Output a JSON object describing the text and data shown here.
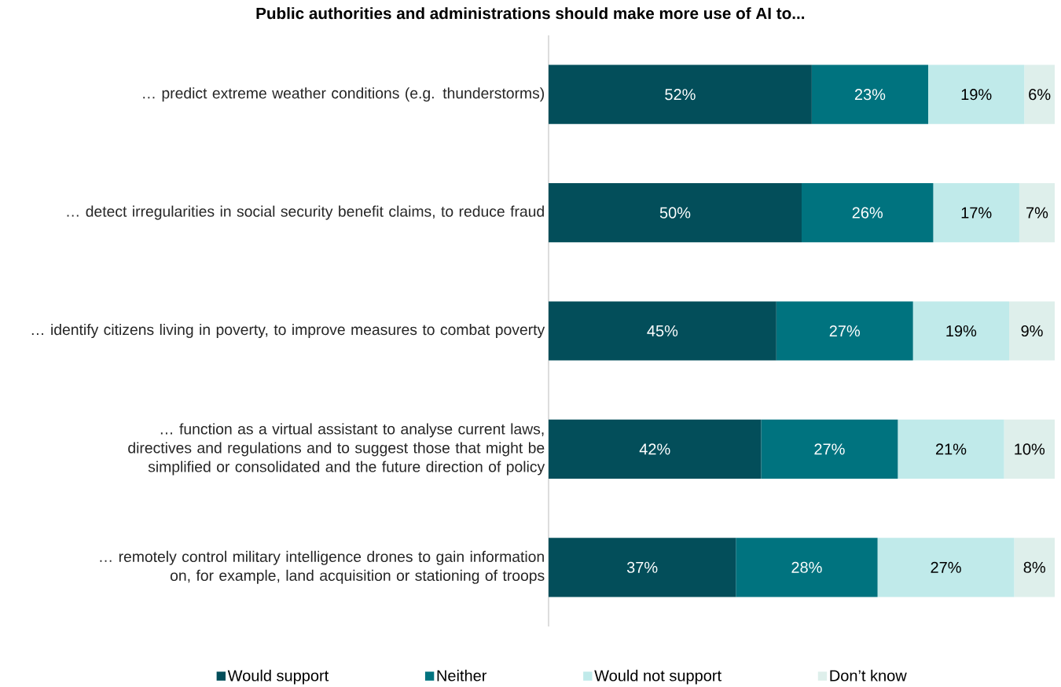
{
  "chart_data": {
    "type": "bar",
    "orientation": "horizontal",
    "stacked": true,
    "title": "Public authorities and administrations should make more use of AI to...",
    "categories": [
      "… predict extreme weather conditions (e.g. thunderstorms)",
      "… detect irregularities in social security benefit claims, to reduce fraud",
      "… identify citizens living in poverty, to improve measures to combat poverty",
      "… function as a virtual assistant to analyse current laws, directives and regulations and to suggest those that might be simplified or consolidated and the future direction of policy",
      "… remotely control military intelligence drones to gain information on, for example, land acquisition or stationing of troops"
    ],
    "series": [
      {
        "name": "Would support",
        "color": "#034e5a",
        "values": [
          52,
          50,
          45,
          42,
          37
        ],
        "value_labels": [
          "52%",
          "50%",
          "45%",
          "42%",
          "37%"
        ]
      },
      {
        "name": "Neither",
        "color": "#00737f",
        "values": [
          23,
          26,
          27,
          27,
          28
        ],
        "value_labels": [
          "23%",
          "26%",
          "27%",
          "27%",
          "28%"
        ]
      },
      {
        "name": "Would not support",
        "color": "#c0eaea",
        "values": [
          19,
          17,
          19,
          21,
          27
        ],
        "value_labels": [
          "19%",
          "17%",
          "19%",
          "21%",
          "27%"
        ]
      },
      {
        "name": "Don’t know",
        "color": "#deefeb",
        "values": [
          6,
          7,
          9,
          10,
          8
        ],
        "value_labels": [
          "6%",
          "7%",
          "9%",
          "10%",
          "8%"
        ]
      }
    ],
    "xlim": [
      0,
      100
    ],
    "tick_labels": "y",
    "legend": "bottom"
  }
}
